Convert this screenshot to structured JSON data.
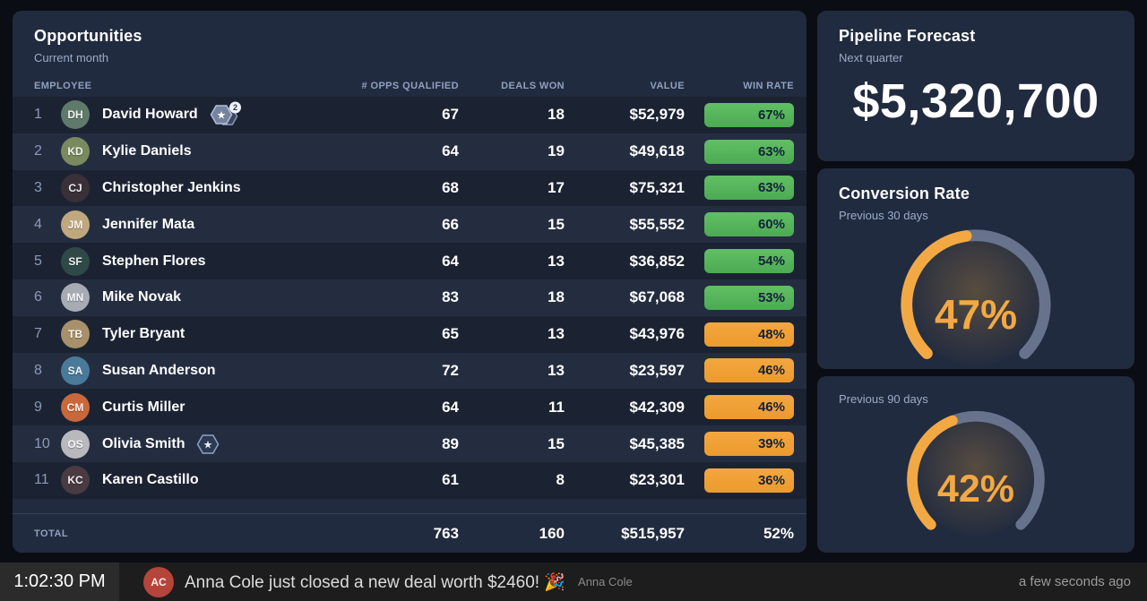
{
  "colors": {
    "page_bg": "#0a0d13",
    "panel_bg": "#212b3f",
    "row_odd": "#1b2333",
    "row_even": "#242d40",
    "green_badge": "#57b75f",
    "orange_badge": "#f0a136",
    "gauge_value": "#f3a943",
    "gauge_track": "#6f7a96",
    "text_primary": "#ffffff",
    "text_muted": "#9cabc8"
  },
  "opportunities": {
    "title": "Opportunities",
    "subtitle": "Current month",
    "columns": [
      "EMPLOYEE",
      "# OPPS QUALIFIED",
      "DEALS WON",
      "VALUE",
      "WIN RATE"
    ],
    "rows": [
      {
        "rank": 1,
        "name": "David Howard",
        "avatar_color": "#5f7a6a",
        "badge": {
          "icon": "star-hexagon",
          "style": "filled",
          "count": 2
        },
        "opps": "67",
        "deals": "18",
        "value": "$52,979",
        "win_rate": "67%",
        "win_color": "green"
      },
      {
        "rank": 2,
        "name": "Kylie Daniels",
        "avatar_color": "#7a8a5f",
        "badge": null,
        "opps": "64",
        "deals": "19",
        "value": "$49,618",
        "win_rate": "63%",
        "win_color": "green"
      },
      {
        "rank": 3,
        "name": "Christopher Jenkins",
        "avatar_color": "#3a3038",
        "badge": null,
        "opps": "68",
        "deals": "17",
        "value": "$75,321",
        "win_rate": "63%",
        "win_color": "green"
      },
      {
        "rank": 4,
        "name": "Jennifer Mata",
        "avatar_color": "#c0a87e",
        "badge": null,
        "opps": "66",
        "deals": "15",
        "value": "$55,552",
        "win_rate": "60%",
        "win_color": "green"
      },
      {
        "rank": 5,
        "name": "Stephen Flores",
        "avatar_color": "#2f4a46",
        "badge": null,
        "opps": "64",
        "deals": "13",
        "value": "$36,852",
        "win_rate": "54%",
        "win_color": "green"
      },
      {
        "rank": 6,
        "name": "Mike Novak",
        "avatar_color": "#a7abb4",
        "badge": null,
        "opps": "83",
        "deals": "18",
        "value": "$67,068",
        "win_rate": "53%",
        "win_color": "green"
      },
      {
        "rank": 7,
        "name": "Tyler Bryant",
        "avatar_color": "#a8906a",
        "badge": null,
        "opps": "65",
        "deals": "13",
        "value": "$43,976",
        "win_rate": "48%",
        "win_color": "orange"
      },
      {
        "rank": 8,
        "name": "Susan Anderson",
        "avatar_color": "#4a7a9a",
        "badge": null,
        "opps": "72",
        "deals": "13",
        "value": "$23,597",
        "win_rate": "46%",
        "win_color": "orange"
      },
      {
        "rank": 9,
        "name": "Curtis Miller",
        "avatar_color": "#c9683a",
        "badge": null,
        "opps": "64",
        "deals": "11",
        "value": "$42,309",
        "win_rate": "46%",
        "win_color": "orange"
      },
      {
        "rank": 10,
        "name": "Olivia Smith",
        "avatar_color": "#b9b9bd",
        "badge": {
          "icon": "star-hexagon",
          "style": "outline",
          "count": 1
        },
        "opps": "89",
        "deals": "15",
        "value": "$45,385",
        "win_rate": "39%",
        "win_color": "orange"
      },
      {
        "rank": 11,
        "name": "Karen Castillo",
        "avatar_color": "#4a3a42",
        "badge": null,
        "opps": "61",
        "deals": "8",
        "value": "$23,301",
        "win_rate": "36%",
        "win_color": "orange"
      }
    ],
    "total": {
      "label": "TOTAL",
      "opps": "763",
      "deals": "160",
      "value": "$515,957",
      "win_rate": "52%"
    }
  },
  "pipeline_forecast": {
    "title": "Pipeline Forecast",
    "subtitle": "Next quarter",
    "value": "$5,320,700"
  },
  "conversion_rate": {
    "title": "Conversion Rate",
    "gauges": [
      {
        "subtitle": "Previous 30 days",
        "value": 47,
        "label": "47%"
      },
      {
        "subtitle": "Previous 90 days",
        "value": 42,
        "label": "42%"
      }
    ]
  },
  "ticker": {
    "time": "1:02:30 PM",
    "message": "Anna Cole just closed a new deal worth $2460! 🎉",
    "author": "Anna Cole",
    "author_avatar_color": "#b5443a",
    "timestamp": "a few seconds ago"
  },
  "chart_data": [
    {
      "type": "table",
      "title": "Opportunities",
      "subtitle": "Current month",
      "categories": [
        "David Howard",
        "Kylie Daniels",
        "Christopher Jenkins",
        "Jennifer Mata",
        "Stephen Flores",
        "Mike Novak",
        "Tyler Bryant",
        "Susan Anderson",
        "Curtis Miller",
        "Olivia Smith",
        "Karen Castillo"
      ],
      "series": [
        {
          "name": "# Opps Qualified",
          "values": [
            67,
            64,
            68,
            66,
            64,
            83,
            65,
            72,
            64,
            89,
            61
          ]
        },
        {
          "name": "Deals Won",
          "values": [
            18,
            19,
            17,
            15,
            13,
            18,
            13,
            13,
            11,
            15,
            8
          ]
        },
        {
          "name": "Value ($)",
          "values": [
            52979,
            49618,
            75321,
            55552,
            36852,
            67068,
            43976,
            23597,
            42309,
            45385,
            23301
          ]
        },
        {
          "name": "Win Rate (%)",
          "values": [
            67,
            63,
            63,
            60,
            54,
            53,
            48,
            46,
            46,
            39,
            36
          ]
        }
      ],
      "totals": {
        "opps_qualified": 763,
        "deals_won": 160,
        "value": 515957,
        "win_rate_pct": 52
      }
    },
    {
      "type": "number",
      "title": "Pipeline Forecast",
      "subtitle": "Next quarter",
      "value": 5320700,
      "formatted": "$5,320,700"
    },
    {
      "type": "gauge",
      "title": "Conversion Rate",
      "subtitle": "Previous 30 days",
      "value": 47,
      "unit": "%",
      "range": [
        0,
        100
      ]
    },
    {
      "type": "gauge",
      "title": "Conversion Rate",
      "subtitle": "Previous 90 days",
      "value": 42,
      "unit": "%",
      "range": [
        0,
        100
      ]
    }
  ]
}
